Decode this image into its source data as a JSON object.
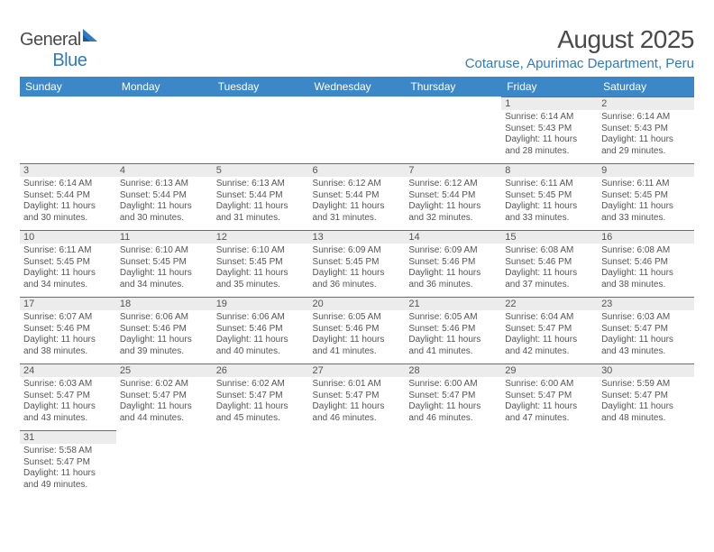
{
  "logo": {
    "word1": "General",
    "word2": "Blue"
  },
  "title": "August 2025",
  "location": "Cotaruse, Apurimac Department, Peru",
  "colors": {
    "header_bg": "#3b87c8",
    "accent": "#2f7bbf",
    "daynum_bg": "#ececec",
    "text": "#555555"
  },
  "day_headers": [
    "Sunday",
    "Monday",
    "Tuesday",
    "Wednesday",
    "Thursday",
    "Friday",
    "Saturday"
  ],
  "weeks": [
    [
      null,
      null,
      null,
      null,
      null,
      {
        "n": "1",
        "sr": "Sunrise: 6:14 AM",
        "ss": "Sunset: 5:43 PM",
        "dl": "Daylight: 11 hours and 28 minutes."
      },
      {
        "n": "2",
        "sr": "Sunrise: 6:14 AM",
        "ss": "Sunset: 5:43 PM",
        "dl": "Daylight: 11 hours and 29 minutes."
      }
    ],
    [
      {
        "n": "3",
        "sr": "Sunrise: 6:14 AM",
        "ss": "Sunset: 5:44 PM",
        "dl": "Daylight: 11 hours and 30 minutes."
      },
      {
        "n": "4",
        "sr": "Sunrise: 6:13 AM",
        "ss": "Sunset: 5:44 PM",
        "dl": "Daylight: 11 hours and 30 minutes."
      },
      {
        "n": "5",
        "sr": "Sunrise: 6:13 AM",
        "ss": "Sunset: 5:44 PM",
        "dl": "Daylight: 11 hours and 31 minutes."
      },
      {
        "n": "6",
        "sr": "Sunrise: 6:12 AM",
        "ss": "Sunset: 5:44 PM",
        "dl": "Daylight: 11 hours and 31 minutes."
      },
      {
        "n": "7",
        "sr": "Sunrise: 6:12 AM",
        "ss": "Sunset: 5:44 PM",
        "dl": "Daylight: 11 hours and 32 minutes."
      },
      {
        "n": "8",
        "sr": "Sunrise: 6:11 AM",
        "ss": "Sunset: 5:45 PM",
        "dl": "Daylight: 11 hours and 33 minutes."
      },
      {
        "n": "9",
        "sr": "Sunrise: 6:11 AM",
        "ss": "Sunset: 5:45 PM",
        "dl": "Daylight: 11 hours and 33 minutes."
      }
    ],
    [
      {
        "n": "10",
        "sr": "Sunrise: 6:11 AM",
        "ss": "Sunset: 5:45 PM",
        "dl": "Daylight: 11 hours and 34 minutes."
      },
      {
        "n": "11",
        "sr": "Sunrise: 6:10 AM",
        "ss": "Sunset: 5:45 PM",
        "dl": "Daylight: 11 hours and 34 minutes."
      },
      {
        "n": "12",
        "sr": "Sunrise: 6:10 AM",
        "ss": "Sunset: 5:45 PM",
        "dl": "Daylight: 11 hours and 35 minutes."
      },
      {
        "n": "13",
        "sr": "Sunrise: 6:09 AM",
        "ss": "Sunset: 5:45 PM",
        "dl": "Daylight: 11 hours and 36 minutes."
      },
      {
        "n": "14",
        "sr": "Sunrise: 6:09 AM",
        "ss": "Sunset: 5:46 PM",
        "dl": "Daylight: 11 hours and 36 minutes."
      },
      {
        "n": "15",
        "sr": "Sunrise: 6:08 AM",
        "ss": "Sunset: 5:46 PM",
        "dl": "Daylight: 11 hours and 37 minutes."
      },
      {
        "n": "16",
        "sr": "Sunrise: 6:08 AM",
        "ss": "Sunset: 5:46 PM",
        "dl": "Daylight: 11 hours and 38 minutes."
      }
    ],
    [
      {
        "n": "17",
        "sr": "Sunrise: 6:07 AM",
        "ss": "Sunset: 5:46 PM",
        "dl": "Daylight: 11 hours and 38 minutes."
      },
      {
        "n": "18",
        "sr": "Sunrise: 6:06 AM",
        "ss": "Sunset: 5:46 PM",
        "dl": "Daylight: 11 hours and 39 minutes."
      },
      {
        "n": "19",
        "sr": "Sunrise: 6:06 AM",
        "ss": "Sunset: 5:46 PM",
        "dl": "Daylight: 11 hours and 40 minutes."
      },
      {
        "n": "20",
        "sr": "Sunrise: 6:05 AM",
        "ss": "Sunset: 5:46 PM",
        "dl": "Daylight: 11 hours and 41 minutes."
      },
      {
        "n": "21",
        "sr": "Sunrise: 6:05 AM",
        "ss": "Sunset: 5:46 PM",
        "dl": "Daylight: 11 hours and 41 minutes."
      },
      {
        "n": "22",
        "sr": "Sunrise: 6:04 AM",
        "ss": "Sunset: 5:47 PM",
        "dl": "Daylight: 11 hours and 42 minutes."
      },
      {
        "n": "23",
        "sr": "Sunrise: 6:03 AM",
        "ss": "Sunset: 5:47 PM",
        "dl": "Daylight: 11 hours and 43 minutes."
      }
    ],
    [
      {
        "n": "24",
        "sr": "Sunrise: 6:03 AM",
        "ss": "Sunset: 5:47 PM",
        "dl": "Daylight: 11 hours and 43 minutes."
      },
      {
        "n": "25",
        "sr": "Sunrise: 6:02 AM",
        "ss": "Sunset: 5:47 PM",
        "dl": "Daylight: 11 hours and 44 minutes."
      },
      {
        "n": "26",
        "sr": "Sunrise: 6:02 AM",
        "ss": "Sunset: 5:47 PM",
        "dl": "Daylight: 11 hours and 45 minutes."
      },
      {
        "n": "27",
        "sr": "Sunrise: 6:01 AM",
        "ss": "Sunset: 5:47 PM",
        "dl": "Daylight: 11 hours and 46 minutes."
      },
      {
        "n": "28",
        "sr": "Sunrise: 6:00 AM",
        "ss": "Sunset: 5:47 PM",
        "dl": "Daylight: 11 hours and 46 minutes."
      },
      {
        "n": "29",
        "sr": "Sunrise: 6:00 AM",
        "ss": "Sunset: 5:47 PM",
        "dl": "Daylight: 11 hours and 47 minutes."
      },
      {
        "n": "30",
        "sr": "Sunrise: 5:59 AM",
        "ss": "Sunset: 5:47 PM",
        "dl": "Daylight: 11 hours and 48 minutes."
      }
    ],
    [
      {
        "n": "31",
        "sr": "Sunrise: 5:58 AM",
        "ss": "Sunset: 5:47 PM",
        "dl": "Daylight: 11 hours and 49 minutes."
      },
      null,
      null,
      null,
      null,
      null,
      null
    ]
  ]
}
